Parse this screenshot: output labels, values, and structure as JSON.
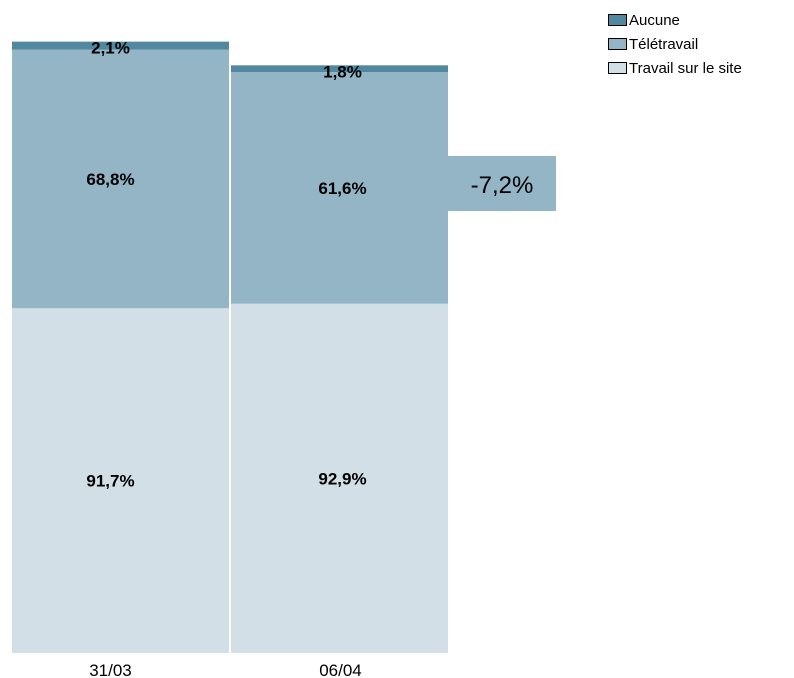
{
  "chart_data": {
    "type": "bar",
    "stacked": true,
    "categories": [
      "31/03",
      "06/04"
    ],
    "series": [
      {
        "name": "Travail sur le site",
        "color": "#d3dfe7",
        "values": [
          91.7,
          92.9
        ],
        "labels": [
          "91,7%",
          "92,9%"
        ]
      },
      {
        "name": "Télétravail",
        "color": "#93b5c6",
        "values": [
          68.8,
          61.6
        ],
        "labels": [
          "68,8%",
          "61,6%"
        ]
      },
      {
        "name": "Aucune",
        "color": "#5287a0",
        "values": [
          2.1,
          1.8
        ],
        "labels": [
          "2,1%",
          "1,8%"
        ]
      }
    ],
    "annotation": {
      "text": "-7,2%",
      "color": "#93b5c6"
    },
    "legend_position": "top-right",
    "grid": false
  },
  "legend": [
    {
      "label": "Aucune",
      "color": "#5287a0"
    },
    {
      "label": "Télétravail",
      "color": "#93b5c6"
    },
    {
      "label": "Travail sur le site",
      "color": "#d3dfe7"
    }
  ]
}
